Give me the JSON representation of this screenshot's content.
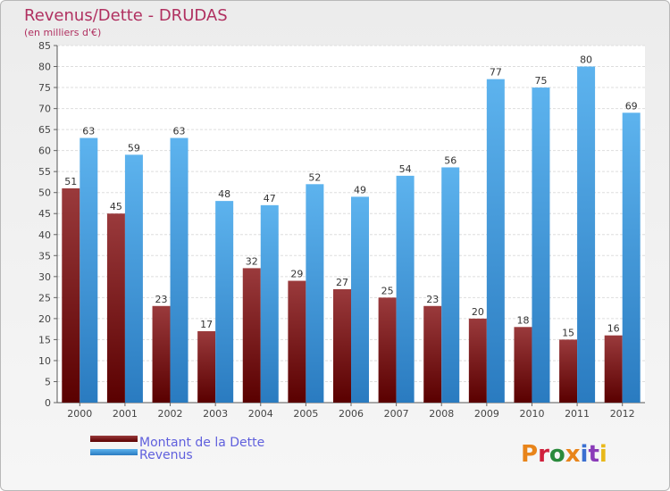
{
  "chart_data": {
    "type": "bar",
    "title": "Revenus/Dette - DRUDAS",
    "subtitle": "(en milliers d'€)",
    "categories": [
      "2000",
      "2001",
      "2002",
      "2003",
      "2004",
      "2005",
      "2006",
      "2007",
      "2008",
      "2009",
      "2010",
      "2011",
      "2012"
    ],
    "series": [
      {
        "name": "Montant de la Dette",
        "color": "#7a1416",
        "values": [
          51,
          45,
          23,
          17,
          32,
          29,
          27,
          25,
          23,
          20,
          18,
          15,
          16
        ]
      },
      {
        "name": "Revenus",
        "color": "#3d96dc",
        "values": [
          63,
          59,
          63,
          48,
          47,
          52,
          49,
          54,
          56,
          77,
          75,
          80,
          69
        ]
      }
    ],
    "ylim": [
      0,
      85
    ],
    "yticks": [
      0,
      5,
      10,
      15,
      20,
      25,
      30,
      35,
      40,
      45,
      50,
      55,
      60,
      65,
      70,
      75,
      80,
      85
    ],
    "grid": true,
    "legend": "bottom-left"
  },
  "logo": {
    "text": "Proxiti",
    "colors": [
      "#e8841a",
      "#d0203c",
      "#2a8a3c",
      "#e8841a",
      "#3b6fd0",
      "#8a3bb8",
      "#e8b81a"
    ]
  }
}
